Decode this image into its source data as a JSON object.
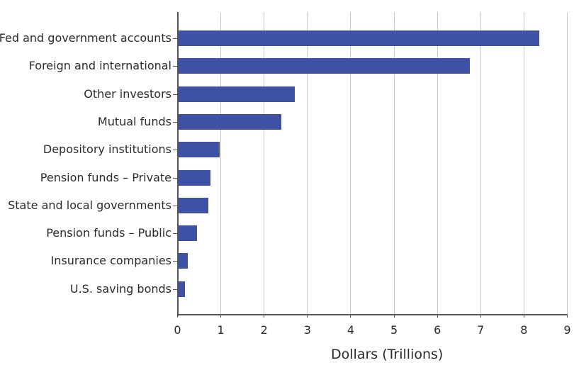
{
  "chart_data": {
    "type": "bar",
    "orientation": "horizontal",
    "title": "",
    "xlabel": "Dollars (Trillions)",
    "ylabel": "",
    "xlim": [
      0,
      9
    ],
    "xticks": [
      "0",
      "1",
      "2",
      "3",
      "4",
      "5",
      "6",
      "7",
      "8",
      "9"
    ],
    "grid": "vertical",
    "legend": "none",
    "bar_color": "#3f51a5",
    "categories": [
      "Fed and government accounts",
      "Foreign and international",
      "Other investors",
      "Mutual funds",
      "Depository institutions",
      "Pension funds – Private",
      "State and local governments",
      "Pension funds – Public",
      "Insurance companies",
      "U.S. saving bonds"
    ],
    "values": [
      8.34,
      6.74,
      2.7,
      2.39,
      0.97,
      0.75,
      0.7,
      0.44,
      0.23,
      0.17
    ]
  }
}
